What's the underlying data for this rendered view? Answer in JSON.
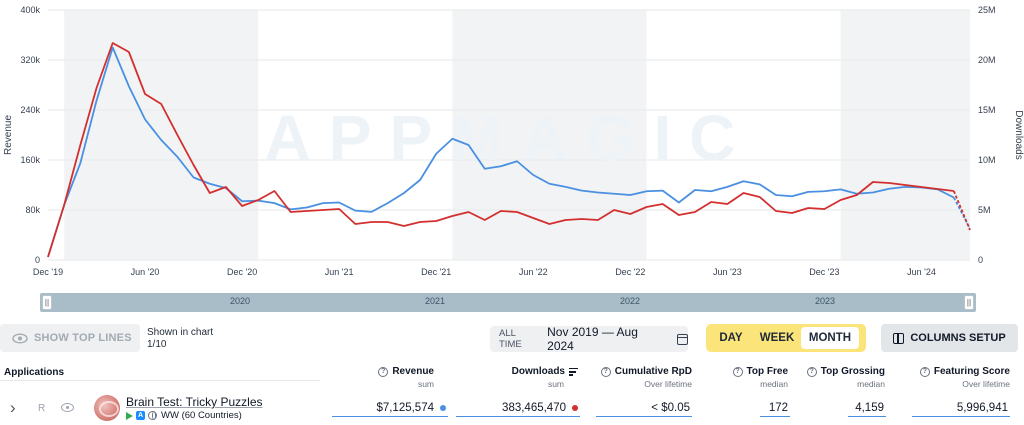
{
  "chart_data": {
    "type": "line",
    "dual_axis": true,
    "left_axis": {
      "label": "Revenue",
      "ylim": [
        0,
        400000
      ],
      "ticks": [
        "0",
        "80k",
        "160k",
        "240k",
        "320k",
        "400k"
      ]
    },
    "right_axis": {
      "label": "Downloads",
      "ylim": [
        0,
        25000000
      ],
      "ticks": [
        "0",
        "5M",
        "10M",
        "15M",
        "20M",
        "25M"
      ]
    },
    "x_ticks": [
      "Dec '19",
      "Jun '20",
      "Dec '20",
      "Jun '21",
      "Dec '21",
      "Jun '22",
      "Dec '22",
      "Jun '23",
      "Dec '23",
      "Jun '24"
    ],
    "x_tick_dates": [
      "2019-12",
      "2020-06",
      "2020-12",
      "2021-06",
      "2021-12",
      "2022-06",
      "2022-12",
      "2023-06",
      "2023-12",
      "2024-06"
    ],
    "x_range": [
      "2019-12",
      "2024-09"
    ],
    "shaded_years": [
      "2020",
      "2022",
      "2024"
    ],
    "watermark": "APPMAGIC",
    "series": [
      {
        "name": "Revenue",
        "axis": "left",
        "color": "#4a90e2",
        "x": [
          "2019-12",
          "2020-01",
          "2020-02",
          "2020-03",
          "2020-04",
          "2020-05",
          "2020-06",
          "2020-07",
          "2020-08",
          "2020-09",
          "2020-10",
          "2020-11",
          "2020-12",
          "2021-01",
          "2021-02",
          "2021-03",
          "2021-04",
          "2021-05",
          "2021-06",
          "2021-07",
          "2021-08",
          "2021-09",
          "2021-10",
          "2021-11",
          "2021-12",
          "2022-01",
          "2022-02",
          "2022-03",
          "2022-04",
          "2022-05",
          "2022-06",
          "2022-07",
          "2022-08",
          "2022-09",
          "2022-10",
          "2022-11",
          "2022-12",
          "2023-01",
          "2023-02",
          "2023-03",
          "2023-04",
          "2023-05",
          "2023-06",
          "2023-07",
          "2023-08",
          "2023-09",
          "2023-10",
          "2023-11",
          "2023-12",
          "2024-01",
          "2024-02",
          "2024-03",
          "2024-04",
          "2024-05",
          "2024-06",
          "2024-07",
          "2024-08",
          "2024-09"
        ],
        "values": [
          5000,
          88000,
          155000,
          255000,
          340000,
          278000,
          225000,
          192000,
          165000,
          132000,
          122000,
          115000,
          94000,
          95000,
          91000,
          81000,
          84000,
          91000,
          92000,
          79000,
          77000,
          91000,
          107000,
          128000,
          170000,
          194000,
          184000,
          146000,
          150000,
          158000,
          136000,
          122000,
          117000,
          111000,
          108000,
          106000,
          104000,
          110000,
          111000,
          92000,
          112000,
          110000,
          117000,
          126000,
          121000,
          104000,
          102000,
          109000,
          110000,
          113000,
          106000,
          108000,
          114000,
          117000,
          116000,
          113000,
          100000,
          50000
        ]
      },
      {
        "name": "Downloads",
        "axis": "right",
        "color": "#d32f2f",
        "x": [
          "2019-12",
          "2020-01",
          "2020-02",
          "2020-03",
          "2020-04",
          "2020-05",
          "2020-06",
          "2020-07",
          "2020-08",
          "2020-09",
          "2020-10",
          "2020-11",
          "2020-12",
          "2021-01",
          "2021-02",
          "2021-03",
          "2021-04",
          "2021-05",
          "2021-06",
          "2021-07",
          "2021-08",
          "2021-09",
          "2021-10",
          "2021-11",
          "2021-12",
          "2022-01",
          "2022-02",
          "2022-03",
          "2022-04",
          "2022-05",
          "2022-06",
          "2022-07",
          "2022-08",
          "2022-09",
          "2022-10",
          "2022-11",
          "2022-12",
          "2023-01",
          "2023-02",
          "2023-03",
          "2023-04",
          "2023-05",
          "2023-06",
          "2023-07",
          "2023-08",
          "2023-09",
          "2023-10",
          "2023-11",
          "2023-12",
          "2024-01",
          "2024-02",
          "2024-03",
          "2024-04",
          "2024-05",
          "2024-06",
          "2024-07",
          "2024-08",
          "2024-09"
        ],
        "values": [
          300000,
          5500000,
          11500000,
          17200000,
          21700000,
          20800000,
          16600000,
          15600000,
          12500000,
          9500000,
          6700000,
          7300000,
          5400000,
          6000000,
          6900000,
          4800000,
          4900000,
          5000000,
          5100000,
          3600000,
          3800000,
          3800000,
          3400000,
          3800000,
          3900000,
          4400000,
          4800000,
          4000000,
          4900000,
          4800000,
          4200000,
          3600000,
          4000000,
          4100000,
          4000000,
          5000000,
          4600000,
          5300000,
          5600000,
          4500000,
          4800000,
          5800000,
          5600000,
          6700000,
          6300000,
          4900000,
          4700000,
          5200000,
          5100000,
          6000000,
          6500000,
          7800000,
          7700000,
          7500000,
          7300000,
          7100000,
          6900000,
          3000000
        ]
      }
    ]
  },
  "brush": {
    "years": [
      "2020",
      "2021",
      "2022",
      "2023"
    ],
    "handle_glyph": "||"
  },
  "controls": {
    "show_top_lines": "SHOW TOP LINES",
    "shown_in_chart_label": "Shown in chart",
    "shown_in_chart_count": "1/10",
    "date_all_time": "ALL TIME",
    "date_range": "Nov 2019 — Aug 2024",
    "periods": [
      "DAY",
      "WEEK",
      "MONTH"
    ],
    "active_period": "MONTH",
    "columns_setup": "COLUMNS SETUP"
  },
  "colors": {
    "period_bg": "#fbe47a",
    "revenue": "#4a90e2",
    "downloads": "#d32f2f"
  },
  "table": {
    "applications_header": "Applications",
    "columns": [
      {
        "title": "Revenue",
        "sub": "sum"
      },
      {
        "title": "Downloads",
        "sub": "sum"
      },
      {
        "title": "Cumulative RpD",
        "sub": "Over lifetime"
      },
      {
        "title": "Top Free",
        "sub": "median"
      },
      {
        "title": "Top Grossing",
        "sub": "median"
      },
      {
        "title": "Featuring Score",
        "sub": "Over lifetime"
      }
    ],
    "row": {
      "chevron": "›",
      "rank": "R",
      "name": "Brain Test: Tricky Puzzles",
      "region": "WW (60 Countries)",
      "app_store_glyph": "A",
      "revenue": "$7,125,574",
      "downloads": "383,465,470",
      "cumulative_rpd": "< $0.05",
      "top_free": "172",
      "top_grossing": "4,159",
      "featuring_score": "5,996,941"
    }
  }
}
